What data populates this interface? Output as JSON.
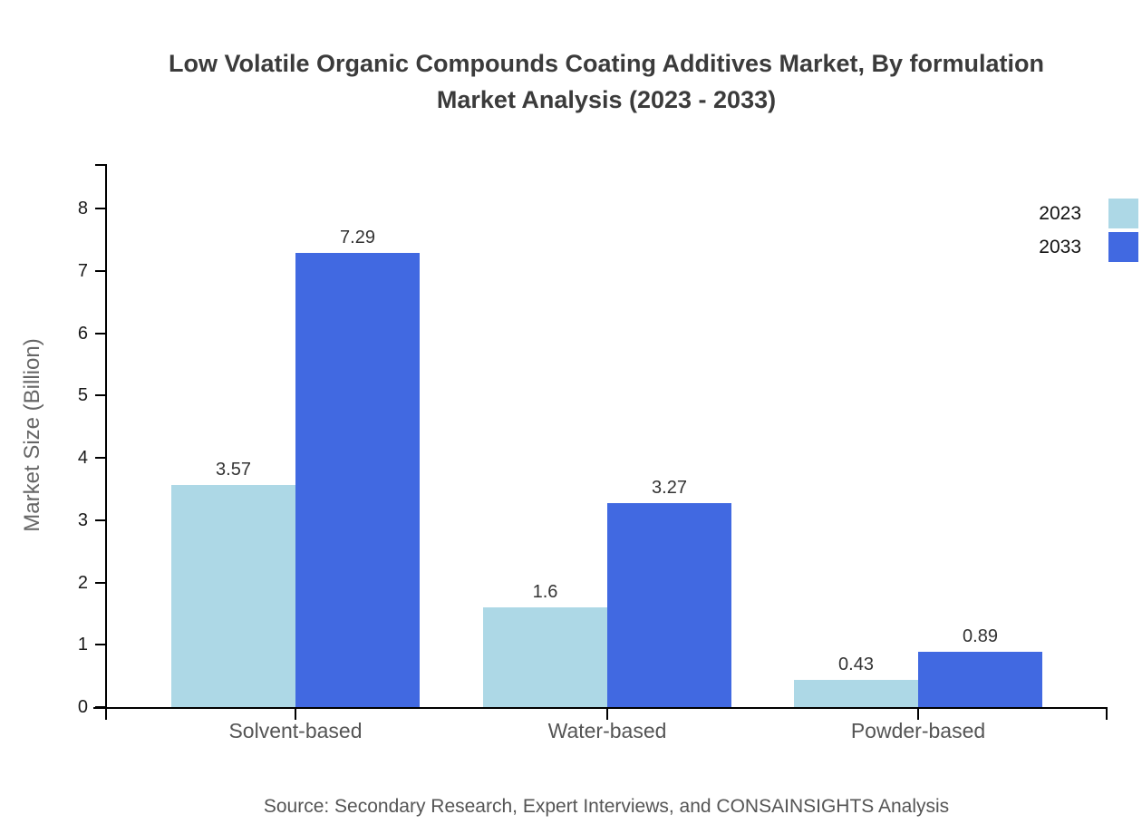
{
  "header": {
    "title_line1": "Low Volatile Organic Compounds Coating Additives Market, By formulation",
    "title_line2": "Market Analysis (2023 - 2033)"
  },
  "chart_data": {
    "type": "bar",
    "title": "Low Volatile Organic Compounds Coating Additives Market, By formulation Market Analysis (2023 - 2033)",
    "categories": [
      "Solvent-based",
      "Water-based",
      "Powder-based"
    ],
    "series": [
      {
        "name": "2023",
        "color": "#ADD8E6",
        "values": [
          3.57,
          1.6,
          0.43
        ]
      },
      {
        "name": "2033",
        "color": "#4169E1",
        "values": [
          7.29,
          3.27,
          0.89
        ]
      }
    ],
    "xlabel": "",
    "ylabel": "Market Size (Billion)",
    "ylim": [
      0,
      8
    ],
    "yticks": [
      0,
      1,
      2,
      3,
      4,
      5,
      6,
      7,
      8
    ],
    "grid": false,
    "legend_position": "top-right",
    "value_labels_shown": true
  },
  "footer": {
    "source": "Source: Secondary Research, Expert Interviews, and CONSAINSIGHTS Analysis"
  }
}
